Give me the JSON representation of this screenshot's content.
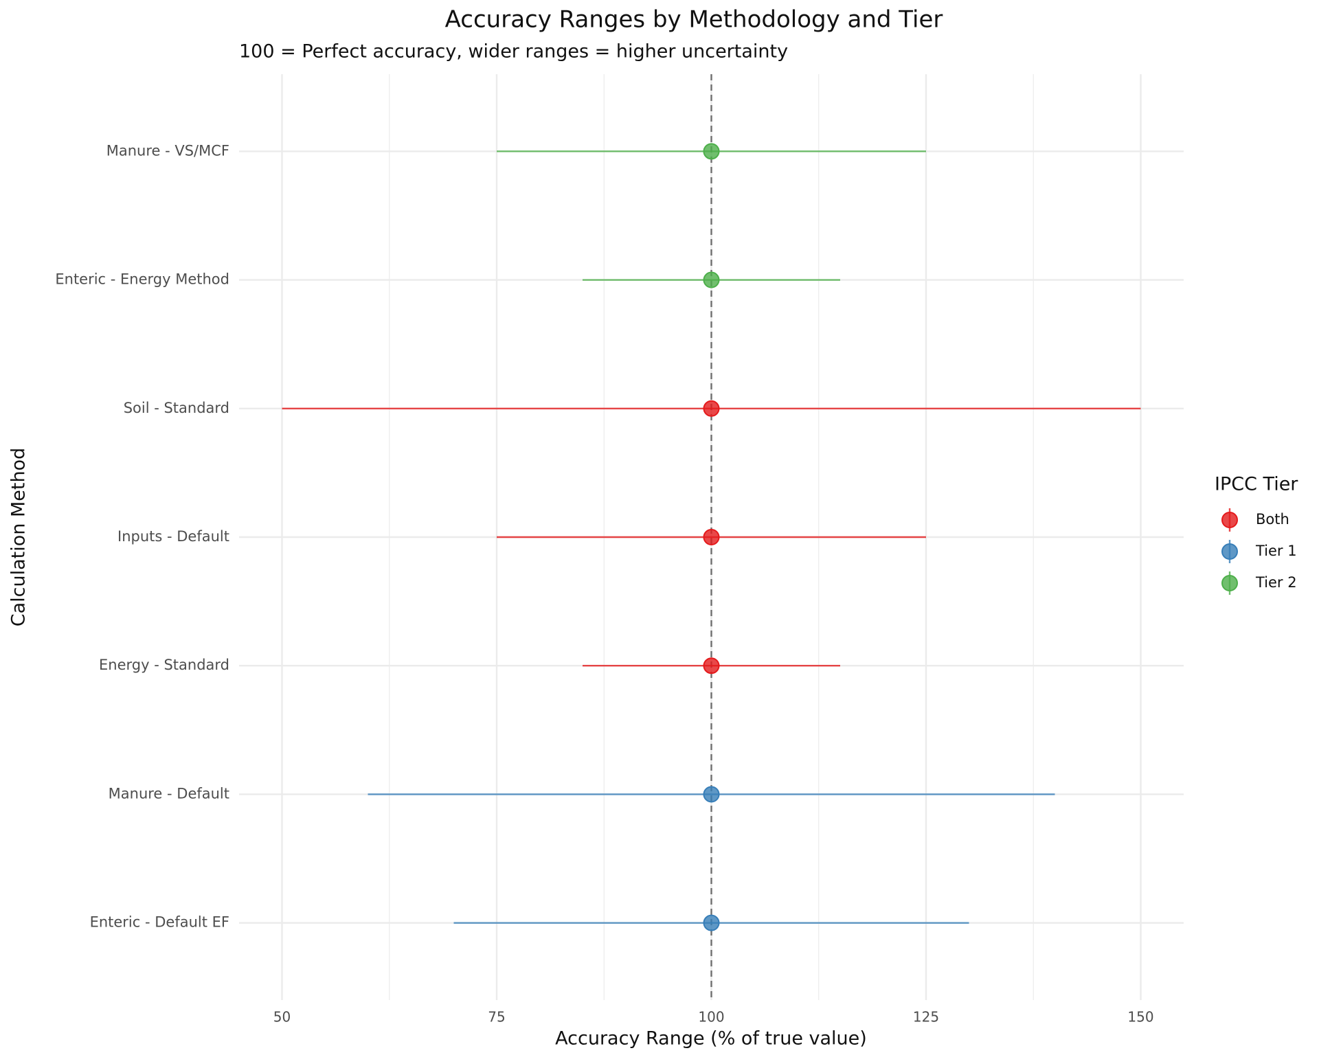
{
  "chart_data": {
    "type": "pointrange",
    "title": "Accuracy Ranges by Methodology and Tier",
    "subtitle": "100 = Perfect accuracy, wider ranges = higher uncertainty",
    "x_label": "Accuracy Range (% of true value)",
    "y_label": "Calculation Method",
    "categories": [
      "Enteric - Default EF",
      "Manure - Default",
      "Energy - Standard",
      "Inputs - Default",
      "Soil - Standard",
      "Enteric - Energy Method",
      "Manure - VS/MCF"
    ],
    "series": [
      {
        "name": "Both",
        "color": "#e41a1c",
        "values": [
          null,
          null,
          100,
          100,
          100,
          null,
          null
        ],
        "lower": [
          null,
          null,
          85,
          75,
          50,
          null,
          null
        ],
        "upper": [
          null,
          null,
          115,
          125,
          150,
          null,
          null
        ]
      },
      {
        "name": "Tier 1",
        "color": "#377eb8",
        "values": [
          100,
          100,
          null,
          null,
          null,
          null,
          null
        ],
        "lower": [
          70,
          60,
          null,
          null,
          null,
          null,
          null
        ],
        "upper": [
          130,
          140,
          null,
          null,
          null,
          null,
          null
        ]
      },
      {
        "name": "Tier 2",
        "color": "#4daf4a",
        "values": [
          null,
          null,
          null,
          null,
          null,
          100,
          100
        ],
        "lower": [
          null,
          null,
          null,
          null,
          null,
          85,
          75
        ],
        "upper": [
          null,
          null,
          null,
          null,
          null,
          115,
          125
        ]
      }
    ],
    "reference_line": 100,
    "legend_title": "IPCC Tier",
    "legend": "right",
    "xlim": [
      45,
      155
    ],
    "xticks": [
      50,
      75,
      100,
      125,
      150
    ],
    "grid": true
  }
}
